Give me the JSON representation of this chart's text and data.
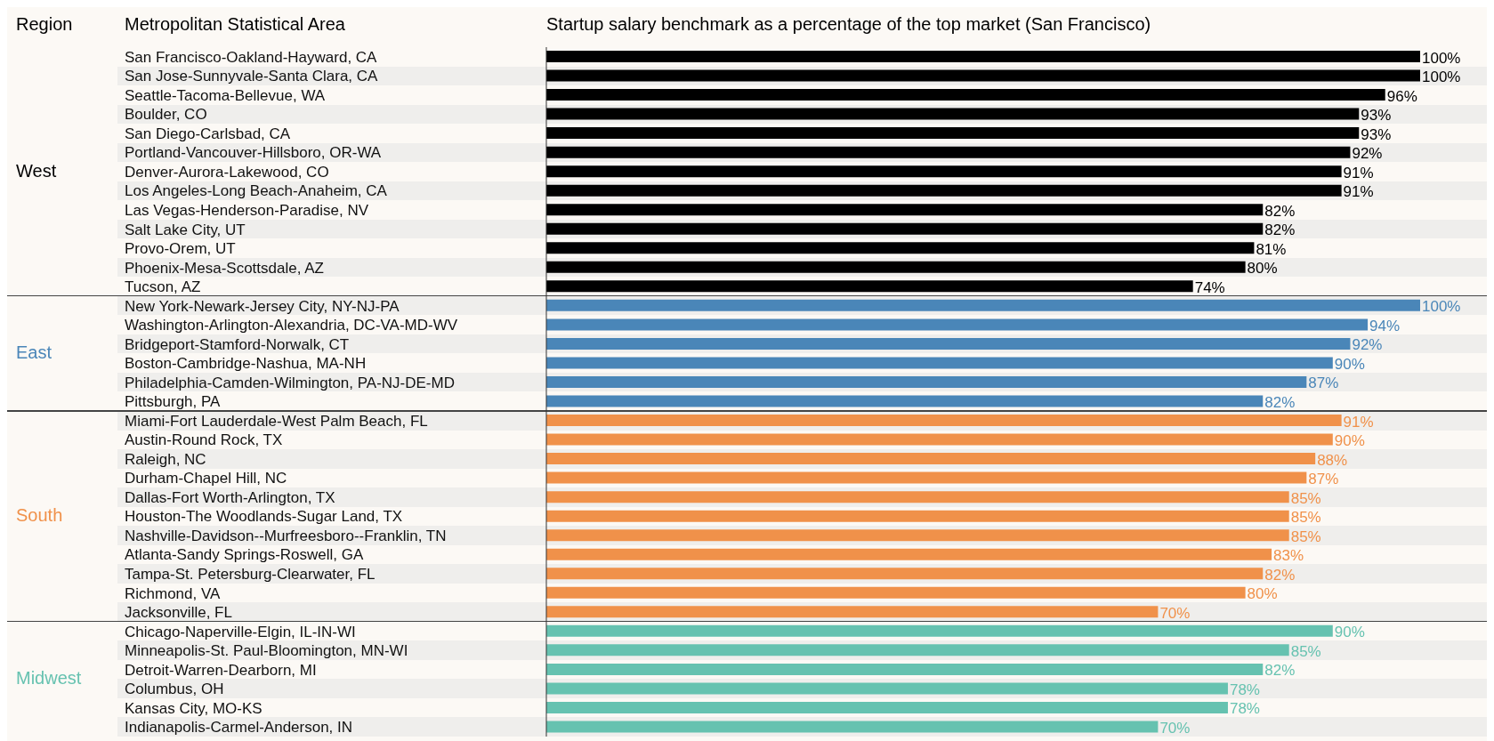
{
  "chart_data": {
    "type": "bar",
    "orientation": "horizontal",
    "stacked": true,
    "title": "Startup salary benchmark as a percentage of the top market (San Francisco)",
    "ylabel": "Metropolitan Statistical Area",
    "legend_title": "Region",
    "xlim": [
      0,
      100
    ],
    "tick_labels": "y",
    "categories": [
      "San Francisco-Oakland-Hayward, CA",
      "San Jose-Sunnyvale-Santa Clara, CA",
      "Seattle-Tacoma-Bellevue, WA",
      "Boulder, CO",
      "San Diego-Carlsbad, CA",
      "Portland-Vancouver-Hillsboro, OR-WA",
      "Denver-Aurora-Lakewood, CO",
      "Los Angeles-Long Beach-Anaheim, CA",
      "Las Vegas-Henderson-Paradise, NV",
      "Salt Lake City, UT",
      "Provo-Orem, UT",
      "Phoenix-Mesa-Scottsdale, AZ",
      "Tucson, AZ",
      "New York-Newark-Jersey City, NY-NJ-PA",
      "Washington-Arlington-Alexandria, DC-VA-MD-WV",
      "Bridgeport-Stamford-Norwalk, CT",
      "Boston-Cambridge-Nashua, MA-NH",
      "Philadelphia-Camden-Wilmington, PA-NJ-DE-MD",
      "Pittsburgh, PA",
      "Miami-Fort Lauderdale-West Palm Beach, FL",
      "Austin-Round Rock, TX",
      "Raleigh, NC",
      "Durham-Chapel Hill, NC",
      "Dallas-Fort Worth-Arlington, TX",
      "Houston-The Woodlands-Sugar Land, TX",
      "Nashville-Davidson--Murfreesboro--Franklin, TN",
      "Atlanta-Sandy Springs-Roswell, GA",
      "Tampa-St. Petersburg-Clearwater, FL",
      "Richmond, VA",
      "Jacksonville, FL",
      "Chicago-Naperville-Elgin, IL-IN-WI",
      "Minneapolis-St. Paul-Bloomington, MN-WI",
      "Detroit-Warren-Dearborn, MI",
      "Columbus, OH",
      "Kansas City, MO-KS",
      "Indianapolis-Carmel-Anderson, IN"
    ],
    "series": [
      {
        "name": "West",
        "color": "#000000",
        "values": [
          100,
          100,
          96,
          93,
          93,
          92,
          91,
          91,
          82,
          82,
          81,
          80,
          74,
          null,
          null,
          null,
          null,
          null,
          null,
          null,
          null,
          null,
          null,
          null,
          null,
          null,
          null,
          null,
          null,
          null,
          null,
          null,
          null,
          null,
          null,
          null
        ],
        "value_labels": [
          "100%",
          "100%",
          "96%",
          "93%",
          "93%",
          "92%",
          "91%",
          "91%",
          "82%",
          "82%",
          "81%",
          "80%",
          "74%",
          null,
          null,
          null,
          null,
          null,
          null,
          null,
          null,
          null,
          null,
          null,
          null,
          null,
          null,
          null,
          null,
          null,
          null,
          null,
          null,
          null,
          null,
          null
        ]
      },
      {
        "name": "East",
        "color": "#4a86b8",
        "values": [
          null,
          null,
          null,
          null,
          null,
          null,
          null,
          null,
          null,
          null,
          null,
          null,
          null,
          100,
          94,
          92,
          90,
          87,
          82,
          null,
          null,
          null,
          null,
          null,
          null,
          null,
          null,
          null,
          null,
          null,
          null,
          null,
          null,
          null,
          null,
          null
        ],
        "value_labels": [
          null,
          null,
          null,
          null,
          null,
          null,
          null,
          null,
          null,
          null,
          null,
          null,
          null,
          "100%",
          "94%",
          "92%",
          "90%",
          "87%",
          "82%",
          null,
          null,
          null,
          null,
          null,
          null,
          null,
          null,
          null,
          null,
          null,
          null,
          null,
          null,
          null,
          null,
          null
        ]
      },
      {
        "name": "South",
        "color": "#f0914a",
        "values": [
          null,
          null,
          null,
          null,
          null,
          null,
          null,
          null,
          null,
          null,
          null,
          null,
          null,
          null,
          null,
          null,
          null,
          null,
          null,
          91,
          90,
          88,
          87,
          85,
          85,
          85,
          83,
          82,
          80,
          70,
          null,
          null,
          null,
          null,
          null,
          null
        ],
        "value_labels": [
          null,
          null,
          null,
          null,
          null,
          null,
          null,
          null,
          null,
          null,
          null,
          null,
          null,
          null,
          null,
          null,
          null,
          null,
          null,
          "91%",
          "90%",
          "88%",
          "87%",
          "85%",
          "85%",
          "85%",
          "83%",
          "82%",
          "80%",
          "70%",
          null,
          null,
          null,
          null,
          null,
          null
        ]
      },
      {
        "name": "Midwest",
        "color": "#66c2b0",
        "values": [
          null,
          null,
          null,
          null,
          null,
          null,
          null,
          null,
          null,
          null,
          null,
          null,
          null,
          null,
          null,
          null,
          null,
          null,
          null,
          null,
          null,
          null,
          null,
          null,
          null,
          null,
          null,
          null,
          null,
          null,
          90,
          85,
          82,
          78,
          78,
          70
        ],
        "value_labels": [
          null,
          null,
          null,
          null,
          null,
          null,
          null,
          null,
          null,
          null,
          null,
          null,
          null,
          null,
          null,
          null,
          null,
          null,
          null,
          null,
          null,
          null,
          null,
          null,
          null,
          null,
          null,
          null,
          null,
          null,
          "90%",
          "85%",
          "82%",
          "78%",
          "78%",
          "70%"
        ]
      }
    ]
  }
}
